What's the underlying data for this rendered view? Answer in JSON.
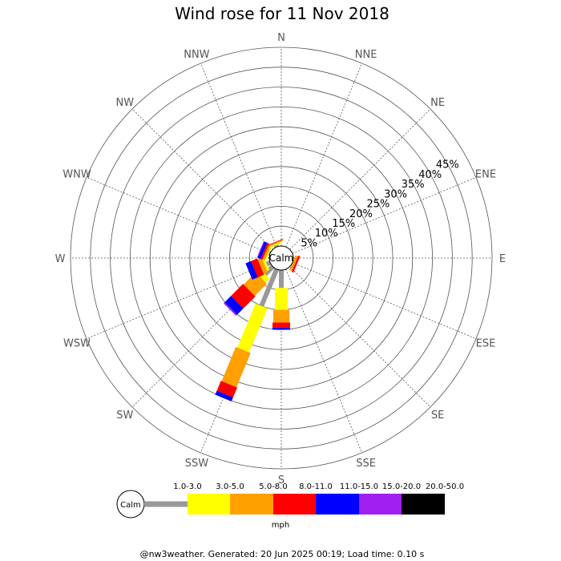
{
  "chart_data": {
    "type": "wind-rose",
    "title": "Wind rose for 11 Nov 2018",
    "center_label": "Calm",
    "directions": [
      "N",
      "NNE",
      "NE",
      "ENE",
      "E",
      "ESE",
      "SE",
      "SSE",
      "S",
      "SSW",
      "SW",
      "WSW",
      "W",
      "WNW",
      "NW",
      "NNW"
    ],
    "ring_labels": [
      "5%",
      "10%",
      "15%",
      "20%",
      "25%",
      "30%",
      "35%",
      "40%",
      "45%"
    ],
    "rmax_percent": 50,
    "unit": "mph",
    "bins": [
      {
        "label": "1.0-3.0",
        "color": "#999999"
      },
      {
        "label": "3.0-5.0",
        "color": "#ffff00"
      },
      {
        "label": "5.0-8.0",
        "color": "#ff9f00"
      },
      {
        "label": "8.0-11.0",
        "color": "#ff0000"
      },
      {
        "label": "11.0-15.0",
        "color": "#0000ff"
      },
      {
        "label": "15.0-20.0",
        "color": "#a020f0"
      },
      {
        "label": "20.0-50.0",
        "color": "#000000"
      }
    ],
    "petals": [
      {
        "dir": "N",
        "values": [
          0,
          0,
          0,
          0,
          0,
          0,
          0
        ]
      },
      {
        "dir": "NNE",
        "values": [
          0,
          0,
          0,
          0,
          0,
          0,
          0
        ]
      },
      {
        "dir": "NE",
        "values": [
          0,
          0,
          0,
          0,
          0,
          0,
          0
        ]
      },
      {
        "dir": "ENE",
        "values": [
          0,
          0,
          0,
          0,
          0,
          0,
          0
        ]
      },
      {
        "dir": "E",
        "values": [
          0,
          0,
          0,
          0,
          0,
          0,
          0
        ]
      },
      {
        "dir": "ESE",
        "values": [
          0,
          0,
          0.7,
          0.5,
          0,
          0,
          0
        ]
      },
      {
        "dir": "SE",
        "values": [
          0,
          0,
          0,
          0,
          0,
          0,
          0
        ]
      },
      {
        "dir": "SSE",
        "values": [
          0,
          0,
          0,
          0,
          0,
          0,
          0
        ]
      },
      {
        "dir": "S",
        "values": [
          4.5,
          5.5,
          3.2,
          1.3,
          0.5,
          0,
          0
        ]
      },
      {
        "dir": "SSW",
        "values": [
          10,
          12,
          9.3,
          2.7,
          1.1,
          0,
          0
        ]
      },
      {
        "dir": "SW",
        "values": [
          2.7,
          1.4,
          4.3,
          4.3,
          2.2,
          0.4,
          0
        ]
      },
      {
        "dir": "WSW",
        "values": [
          0.9,
          0.6,
          1.1,
          1.7,
          1.5,
          0,
          0
        ]
      },
      {
        "dir": "W",
        "values": [
          0,
          0,
          0,
          0,
          0,
          0,
          0
        ]
      },
      {
        "dir": "WNW",
        "values": [
          0.3,
          0.3,
          0.6,
          0.5,
          0.8,
          0.2,
          0
        ]
      },
      {
        "dir": "NW",
        "values": [
          0,
          0,
          0,
          0,
          0,
          0,
          0
        ]
      },
      {
        "dir": "NNW",
        "values": [
          0.4,
          0.4,
          0.3,
          0.2,
          0,
          0,
          0
        ]
      }
    ]
  },
  "footer": "@nw3weather. Generated: 20 Jun 2025 00:19; Load time: 0.10 s"
}
